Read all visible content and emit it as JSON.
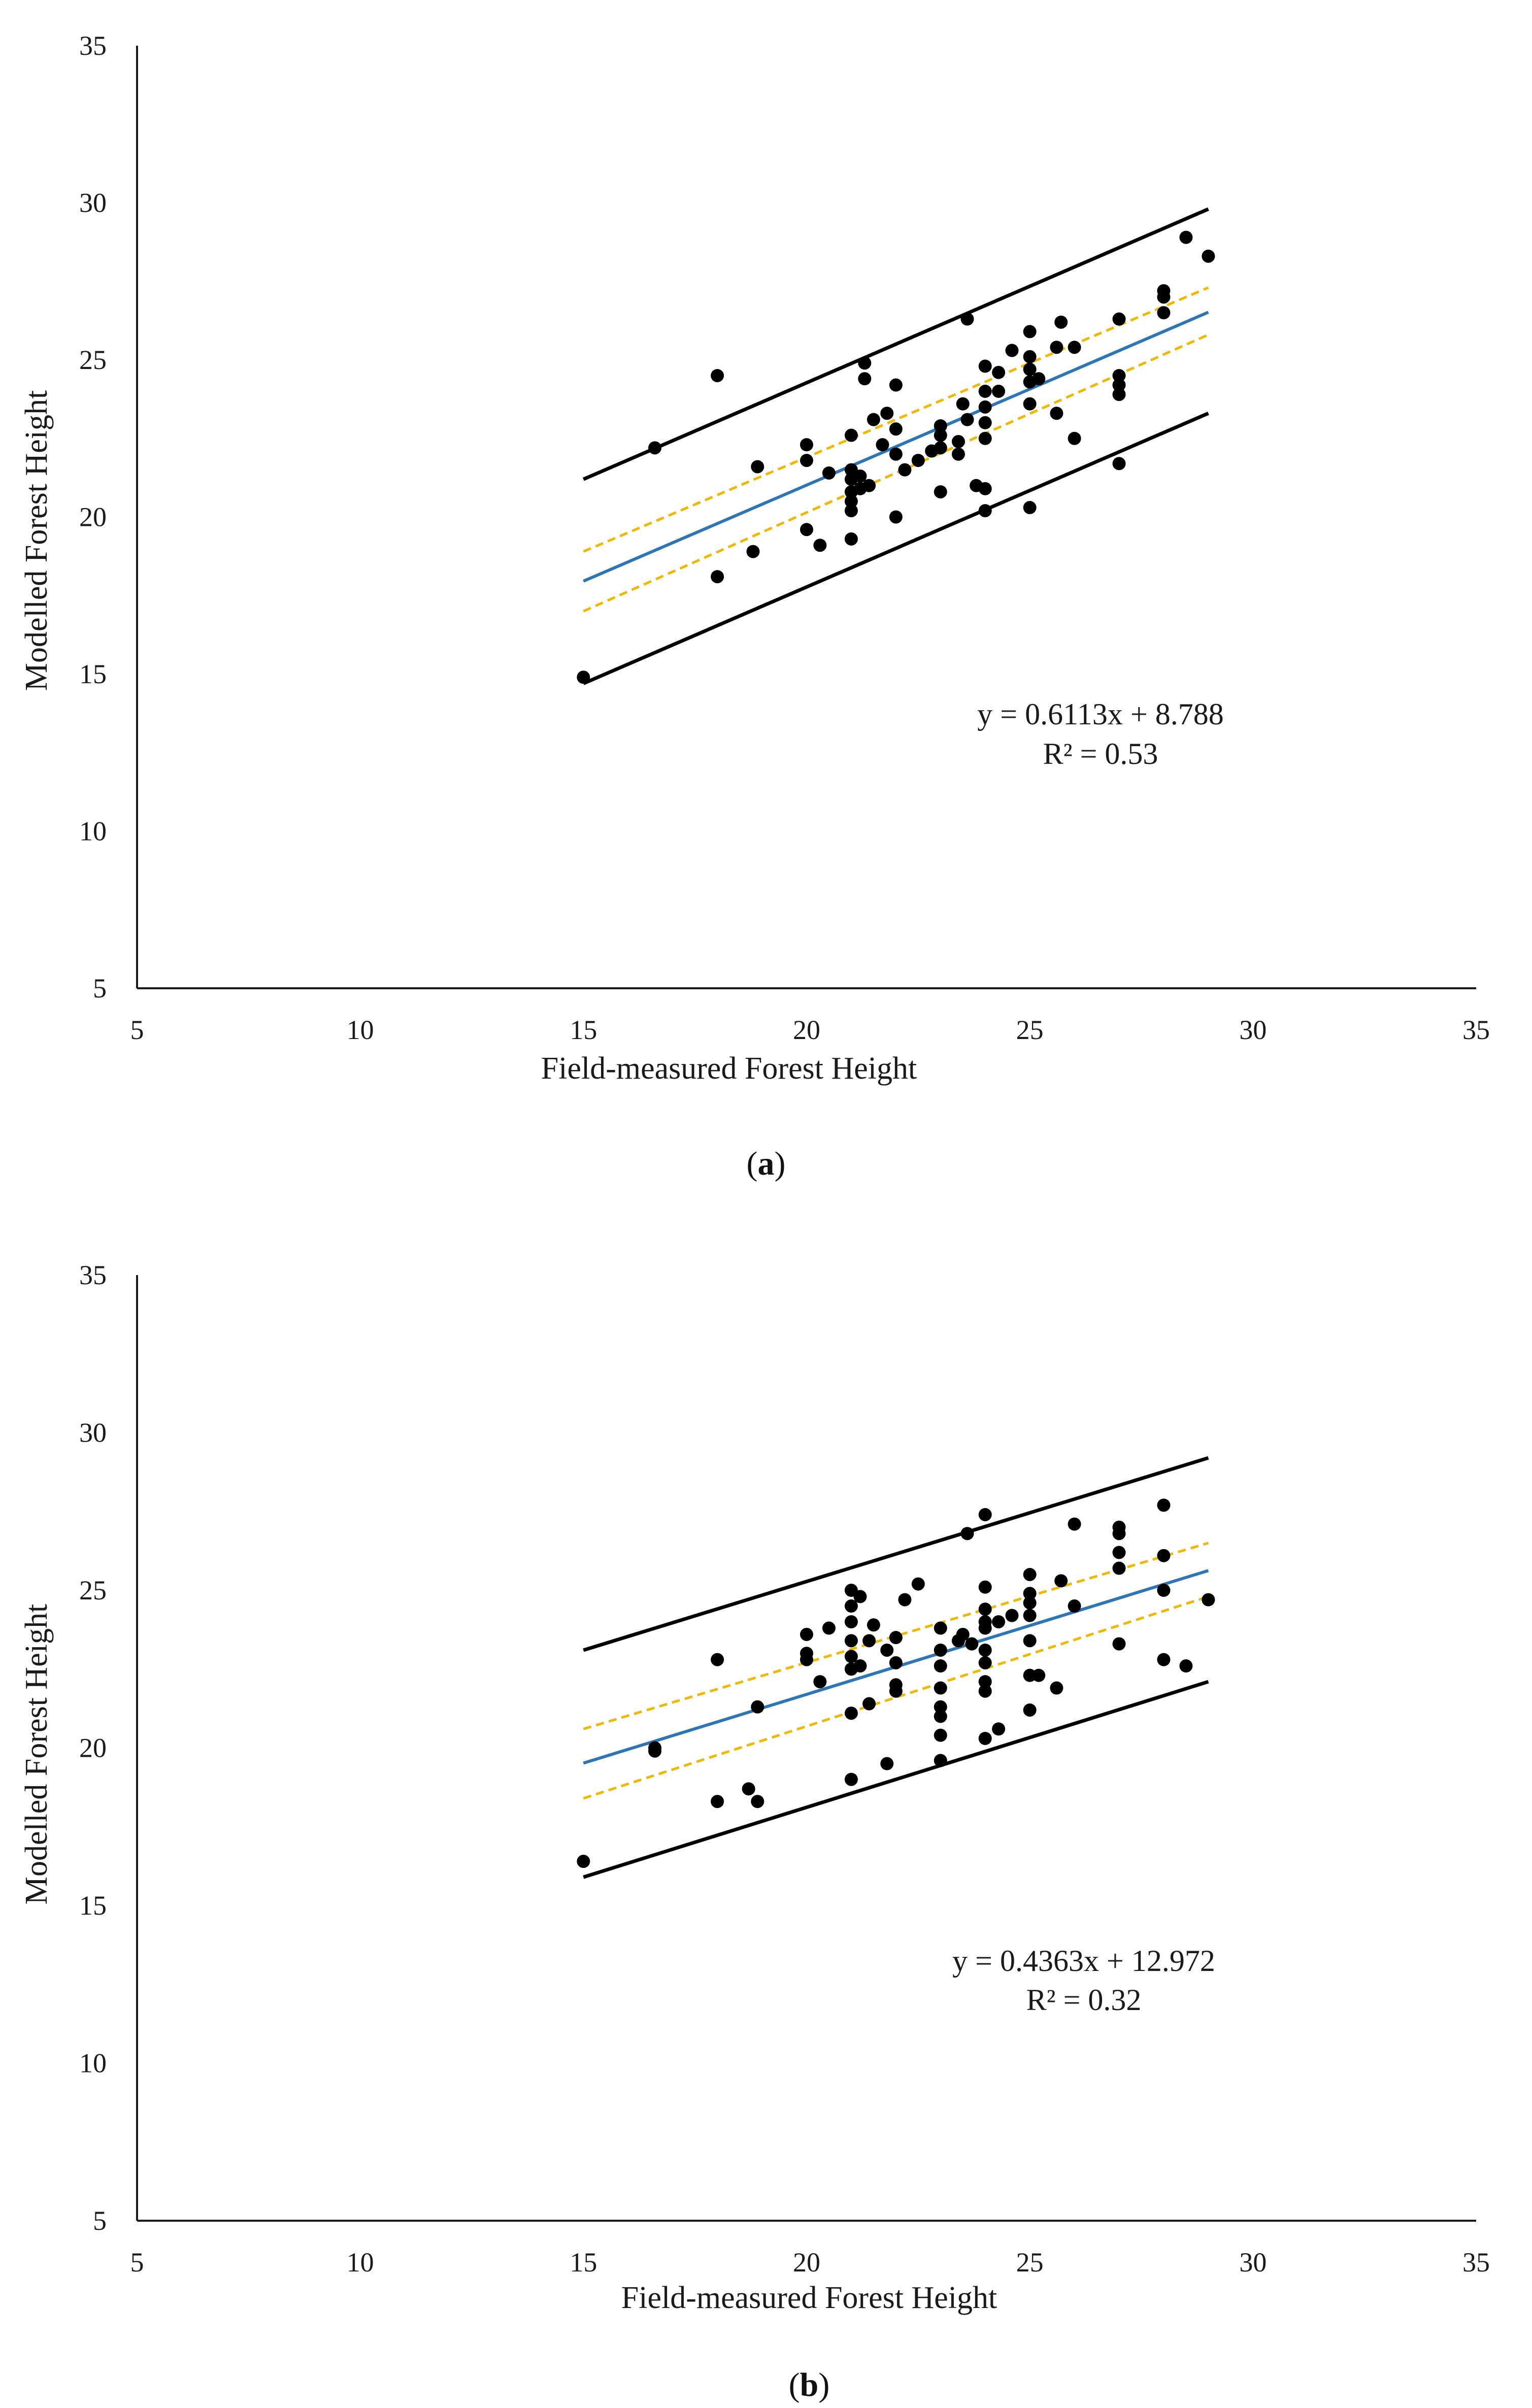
{
  "colors": {
    "points": "#000000",
    "regression": "#2E75B6",
    "confidence": "#F2B705",
    "prediction": "#000000"
  },
  "chart_data": [
    {
      "panel": "a",
      "caption_open": "(",
      "caption_letter": "a",
      "caption_close": ")",
      "type": "scatter",
      "title": "",
      "xlabel": "Field-measured  Forest Height",
      "ylabel": "Modelled Forest Height",
      "xlim": [
        5,
        35
      ],
      "ylim": [
        5,
        35
      ],
      "xticks": [
        5,
        10,
        15,
        20,
        25,
        30,
        35
      ],
      "yticks": [
        5,
        10,
        15,
        20,
        25,
        30,
        35
      ],
      "equation": "y = 0.6113x + 8.788",
      "r2": "R² = 0.53",
      "regression": {
        "slope": 0.6113,
        "intercept": 8.788,
        "x_range": [
          15,
          29
        ]
      },
      "confidence_upper": [
        [
          15,
          18.9
        ],
        [
          29,
          27.3
        ]
      ],
      "confidence_lower": [
        [
          15,
          17.0
        ],
        [
          29,
          25.8
        ]
      ],
      "prediction_upper": [
        [
          15,
          21.2
        ],
        [
          29,
          29.8
        ]
      ],
      "prediction_lower": [
        [
          15,
          14.7
        ],
        [
          29,
          23.3
        ]
      ],
      "points": [
        [
          15,
          14.9
        ],
        [
          16.6,
          22.2
        ],
        [
          18,
          24.5
        ],
        [
          18,
          18.1
        ],
        [
          18.8,
          18.9
        ],
        [
          18.9,
          21.6
        ],
        [
          20,
          22.3
        ],
        [
          20,
          21.8
        ],
        [
          20,
          19.6
        ],
        [
          20.3,
          19.1
        ],
        [
          20.5,
          21.4
        ],
        [
          21,
          22.6
        ],
        [
          21,
          21.5
        ],
        [
          21,
          21.2
        ],
        [
          21,
          20.8
        ],
        [
          21,
          20.5
        ],
        [
          21,
          20.2
        ],
        [
          21,
          19.3
        ],
        [
          21.2,
          21.3
        ],
        [
          21.2,
          20.9
        ],
        [
          21.3,
          24.9
        ],
        [
          21.3,
          24.4
        ],
        [
          21.4,
          21.0
        ],
        [
          21.5,
          23.1
        ],
        [
          21.7,
          22.3
        ],
        [
          21.8,
          23.3
        ],
        [
          22,
          24.2
        ],
        [
          22,
          22.8
        ],
        [
          22,
          22.0
        ],
        [
          22,
          20.0
        ],
        [
          22.2,
          21.5
        ],
        [
          22.5,
          21.8
        ],
        [
          22.8,
          22.1
        ],
        [
          23,
          22.9
        ],
        [
          23,
          22.6
        ],
        [
          23,
          22.2
        ],
        [
          23,
          20.8
        ],
        [
          23.4,
          22.4
        ],
        [
          23.4,
          22.0
        ],
        [
          23.5,
          23.6
        ],
        [
          23.6,
          26.3
        ],
        [
          23.6,
          23.1
        ],
        [
          23.8,
          21.0
        ],
        [
          24,
          24.8
        ],
        [
          24,
          24.0
        ],
        [
          24,
          23.5
        ],
        [
          24,
          23.0
        ],
        [
          24,
          22.5
        ],
        [
          24,
          20.9
        ],
        [
          24,
          20.2
        ],
        [
          24.3,
          24.6
        ],
        [
          24.3,
          24.0
        ],
        [
          24.6,
          25.3
        ],
        [
          25,
          25.9
        ],
        [
          25,
          25.1
        ],
        [
          25,
          24.7
        ],
        [
          25,
          24.3
        ],
        [
          25,
          23.6
        ],
        [
          25,
          20.3
        ],
        [
          25.2,
          24.4
        ],
        [
          25.6,
          25.4
        ],
        [
          25.6,
          23.3
        ],
        [
          25.7,
          26.2
        ],
        [
          26,
          25.4
        ],
        [
          26,
          22.5
        ],
        [
          27,
          26.3
        ],
        [
          27,
          24.5
        ],
        [
          27,
          24.2
        ],
        [
          27,
          23.9
        ],
        [
          27,
          21.7
        ],
        [
          28,
          27.2
        ],
        [
          28,
          27.0
        ],
        [
          28,
          26.5
        ],
        [
          28.5,
          28.9
        ],
        [
          29,
          28.3
        ]
      ]
    },
    {
      "panel": "b",
      "caption_open": "(",
      "caption_letter": "b",
      "caption_close": ")",
      "type": "scatter",
      "title": "",
      "xlabel": "Field-measured  Forest Height",
      "ylabel": "Modelled Forest Height",
      "xlim": [
        5,
        35
      ],
      "ylim": [
        5,
        35
      ],
      "xticks": [
        5,
        10,
        15,
        20,
        25,
        30,
        35
      ],
      "yticks": [
        5,
        10,
        15,
        20,
        25,
        30,
        35
      ],
      "equation": "y = 0.4363x + 12.972",
      "r2": "R² = 0.32",
      "regression": {
        "slope": 0.4363,
        "intercept": 12.972,
        "x_range": [
          15,
          29
        ]
      },
      "confidence_upper": [
        [
          15,
          20.6
        ],
        [
          29,
          26.5
        ]
      ],
      "confidence_lower": [
        [
          15,
          18.4
        ],
        [
          29,
          24.8
        ]
      ],
      "prediction_upper": [
        [
          15,
          23.1
        ],
        [
          29,
          29.2
        ]
      ],
      "prediction_lower": [
        [
          15,
          15.9
        ],
        [
          29,
          22.1
        ]
      ],
      "points": [
        [
          15,
          16.4
        ],
        [
          16.6,
          20.0
        ],
        [
          16.6,
          19.9
        ],
        [
          18,
          22.8
        ],
        [
          18,
          18.3
        ],
        [
          18.7,
          18.7
        ],
        [
          18.9,
          21.3
        ],
        [
          18.9,
          18.3
        ],
        [
          20,
          23.6
        ],
        [
          20,
          23.0
        ],
        [
          20,
          22.8
        ],
        [
          20.3,
          22.1
        ],
        [
          20.5,
          23.8
        ],
        [
          21,
          25.0
        ],
        [
          21,
          24.5
        ],
        [
          21,
          24.0
        ],
        [
          21,
          23.4
        ],
        [
          21,
          22.9
        ],
        [
          21,
          22.5
        ],
        [
          21,
          21.1
        ],
        [
          21,
          19.0
        ],
        [
          21.2,
          24.8
        ],
        [
          21.2,
          22.6
        ],
        [
          21.4,
          23.4
        ],
        [
          21.4,
          21.4
        ],
        [
          21.5,
          23.9
        ],
        [
          21.8,
          23.1
        ],
        [
          21.8,
          19.5
        ],
        [
          22,
          23.5
        ],
        [
          22,
          22.7
        ],
        [
          22,
          22.0
        ],
        [
          22,
          21.8
        ],
        [
          22.2,
          24.7
        ],
        [
          22.5,
          25.2
        ],
        [
          23,
          23.8
        ],
        [
          23,
          23.1
        ],
        [
          23,
          22.6
        ],
        [
          23,
          21.9
        ],
        [
          23,
          21.3
        ],
        [
          23,
          21.0
        ],
        [
          23,
          20.4
        ],
        [
          23,
          19.6
        ],
        [
          23.4,
          23.4
        ],
        [
          23.5,
          23.6
        ],
        [
          23.6,
          26.8
        ],
        [
          23.7,
          23.3
        ],
        [
          24,
          27.4
        ],
        [
          24,
          25.1
        ],
        [
          24,
          24.4
        ],
        [
          24,
          24.0
        ],
        [
          24,
          23.8
        ],
        [
          24,
          23.1
        ],
        [
          24,
          22.7
        ],
        [
          24,
          22.1
        ],
        [
          24,
          21.8
        ],
        [
          24,
          20.3
        ],
        [
          24.3,
          24.0
        ],
        [
          24.3,
          20.6
        ],
        [
          24.6,
          24.2
        ],
        [
          25,
          25.5
        ],
        [
          25,
          24.9
        ],
        [
          25,
          24.6
        ],
        [
          25,
          24.2
        ],
        [
          25,
          23.4
        ],
        [
          25,
          22.3
        ],
        [
          25,
          21.2
        ],
        [
          25.2,
          22.3
        ],
        [
          25.6,
          21.9
        ],
        [
          25.7,
          25.3
        ],
        [
          26,
          27.1
        ],
        [
          26,
          24.5
        ],
        [
          27,
          27.0
        ],
        [
          27,
          26.8
        ],
        [
          27,
          26.2
        ],
        [
          27,
          25.7
        ],
        [
          27,
          23.3
        ],
        [
          28,
          27.7
        ],
        [
          28,
          26.1
        ],
        [
          28,
          25.0
        ],
        [
          28,
          22.8
        ],
        [
          28.5,
          22.6
        ],
        [
          29,
          24.7
        ]
      ]
    }
  ]
}
